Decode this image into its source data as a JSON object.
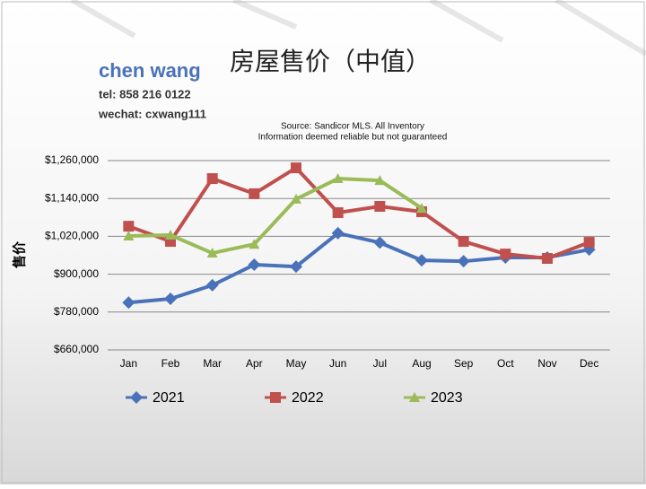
{
  "header": {
    "name": "chen wang",
    "tel": "tel: 858 216 0122",
    "wechat": "wechat: cxwang111"
  },
  "chart_data": {
    "type": "line",
    "title": "房屋售价（中值）",
    "subtitle": [
      "Source: Sandicor MLS. All Inventory",
      "Information deemed reliable but not guaranteed"
    ],
    "y_label": "售价",
    "categories": [
      "Jan",
      "Feb",
      "Mar",
      "Apr",
      "May",
      "Jun",
      "Jul",
      "Aug",
      "Sep",
      "Oct",
      "Nov",
      "Dec"
    ],
    "series": [
      {
        "name": "2021",
        "color": "#4a72b8",
        "marker": "diamond",
        "values": [
          810000,
          822000,
          865000,
          930000,
          924000,
          1030000,
          1000000,
          944000,
          941000,
          953000,
          953000,
          978000
        ]
      },
      {
        "name": "2022",
        "color": "#c0504d",
        "marker": "square",
        "values": [
          1052000,
          1004000,
          1203000,
          1155000,
          1237000,
          1095000,
          1115000,
          1098000,
          1004000,
          964000,
          950000,
          1001000
        ]
      },
      {
        "name": "2023",
        "color": "#9bbb59",
        "marker": "triangle",
        "values": [
          1021000,
          1024000,
          967000,
          995000,
          1138000,
          1203000,
          1197000,
          1109000,
          null,
          null,
          null,
          null
        ]
      }
    ],
    "ylim": [
      660000,
      1260000
    ],
    "yticks": [
      {
        "value": 660000,
        "label": "$660,000"
      },
      {
        "value": 780000,
        "label": "$780,000"
      },
      {
        "value": 900000,
        "label": "$900,000"
      },
      {
        "value": 1020000,
        "label": "$1,020,000"
      },
      {
        "value": 1140000,
        "label": "$1,140,000"
      },
      {
        "value": 1260000,
        "label": "$1,260,000"
      }
    ],
    "grid": true,
    "legend": "bottom"
  }
}
